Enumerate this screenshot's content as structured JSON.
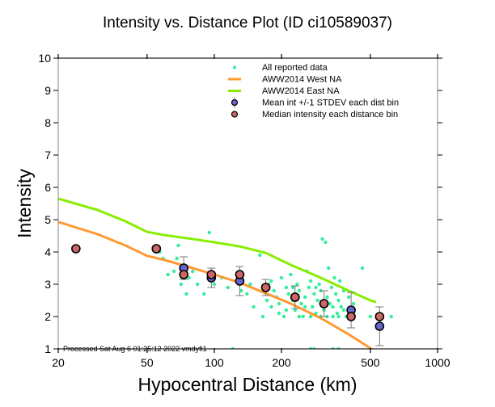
{
  "chart_data": {
    "type": "scatter",
    "title": "Intensity vs. Distance Plot (ID ci10589037)",
    "xlabel": "Hypocentral Distance (km)",
    "ylabel": "Intensity",
    "xscale": "log",
    "xlim": [
      20,
      1000
    ],
    "ylim": [
      1,
      10
    ],
    "xticks": [
      20,
      50,
      100,
      200,
      500,
      1000
    ],
    "xtick_labels": [
      "20",
      "50",
      "100",
      "200",
      "500",
      "1000"
    ],
    "yticks": [
      1,
      2,
      3,
      4,
      5,
      6,
      7,
      8,
      9,
      10
    ],
    "ytick_labels": [
      "1",
      "2",
      "3",
      "4",
      "5",
      "6",
      "7",
      "8",
      "9",
      "10"
    ],
    "grid": false,
    "legend_position": "top-right",
    "legend": [
      {
        "label": "All reported data",
        "kind": "dot",
        "color": "#33ee99"
      },
      {
        "label": "AWW2014 West NA",
        "kind": "line",
        "color": "#ff9933"
      },
      {
        "label": "AWW2014 East NA",
        "kind": "line",
        "color": "#88ee00"
      },
      {
        "label": "Mean int +/-1 STDEV each dist bin",
        "kind": "errcircle",
        "color": "#6666cc"
      },
      {
        "label": "Median intensity each distance bin",
        "kind": "circle",
        "color": "#cc6666"
      }
    ],
    "footer_note": "Processed Sat Aug  6 01:25:12 2022 vmdyfi1",
    "series": [
      {
        "name": "AWW2014 West NA",
        "kind": "line",
        "color": "#ff9933",
        "x": [
          20,
          30,
          40,
          50,
          60,
          80,
          100,
          130,
          170,
          220,
          300,
          400,
          500,
          530
        ],
        "y": [
          4.93,
          4.55,
          4.2,
          3.88,
          3.75,
          3.5,
          3.3,
          3.05,
          2.72,
          2.4,
          1.95,
          1.45,
          1.02,
          0.9
        ]
      },
      {
        "name": "AWW2014 East NA",
        "kind": "line",
        "color": "#88ee00",
        "x": [
          20,
          30,
          40,
          50,
          60,
          80,
          100,
          130,
          170,
          220,
          300,
          400,
          500,
          530
        ],
        "y": [
          5.65,
          5.3,
          4.95,
          4.62,
          4.52,
          4.4,
          4.3,
          4.17,
          3.97,
          3.6,
          3.2,
          2.8,
          2.5,
          2.45
        ]
      },
      {
        "name": "Mean int +/-1 STDEV each dist bin",
        "kind": "errorbar",
        "color": "#6666cc",
        "x": [
          55,
          73,
          97,
          130,
          170,
          230,
          310,
          410,
          550
        ],
        "y": [
          4.1,
          3.5,
          3.2,
          3.1,
          2.9,
          2.6,
          2.4,
          2.2,
          1.7
        ],
        "err": [
          0,
          0.35,
          0.3,
          0.45,
          0.25,
          0.35,
          0.4,
          0.55,
          0.6
        ]
      },
      {
        "name": "Median intensity each distance bin",
        "kind": "points",
        "color": "#cc6666",
        "x": [
          24,
          55,
          73,
          97,
          130,
          170,
          230,
          310,
          410,
          550
        ],
        "y": [
          4.1,
          4.1,
          3.3,
          3.3,
          3.3,
          2.9,
          2.6,
          2.4,
          2.0,
          2.0
        ]
      },
      {
        "name": "All reported data",
        "kind": "dots",
        "color": "#33ee99",
        "points": [
          [
            57,
            4.0
          ],
          [
            59,
            3.8
          ],
          [
            62,
            3.3
          ],
          [
            66,
            3.4
          ],
          [
            68,
            3.8
          ],
          [
            69,
            4.2
          ],
          [
            71,
            3.0
          ],
          [
            75,
            2.7
          ],
          [
            77,
            3.2
          ],
          [
            80,
            3.4
          ],
          [
            84,
            3.0
          ],
          [
            90,
            2.7
          ],
          [
            95,
            4.6
          ],
          [
            100,
            3.0
          ],
          [
            108,
            3.2
          ],
          [
            115,
            2.9
          ],
          [
            121,
            1.0
          ],
          [
            132,
            2.8
          ],
          [
            140,
            2.7
          ],
          [
            145,
            3.0
          ],
          [
            150,
            2.3
          ],
          [
            160,
            3.9
          ],
          [
            165,
            2.0
          ],
          [
            172,
            2.5
          ],
          [
            175,
            3.0
          ],
          [
            180,
            3.1
          ],
          [
            185,
            2.8
          ],
          [
            190,
            2.6
          ],
          [
            195,
            2.4
          ],
          [
            200,
            3.2
          ],
          [
            205,
            2.0
          ],
          [
            210,
            2.9
          ],
          [
            215,
            2.7
          ],
          [
            220,
            3.3
          ],
          [
            225,
            2.5
          ],
          [
            230,
            2.2
          ],
          [
            235,
            3.0
          ],
          [
            240,
            2.8
          ],
          [
            245,
            2.4
          ],
          [
            250,
            2.0
          ],
          [
            255,
            2.6
          ],
          [
            260,
            3.4
          ],
          [
            265,
            2.9
          ],
          [
            270,
            3.1
          ],
          [
            275,
            2.3
          ],
          [
            280,
            2.7
          ],
          [
            285,
            2.1
          ],
          [
            290,
            2.5
          ],
          [
            295,
            3.0
          ],
          [
            300,
            2.8
          ],
          [
            305,
            4.4
          ],
          [
            310,
            2.2
          ],
          [
            315,
            4.3
          ],
          [
            320,
            2.6
          ],
          [
            325,
            3.5
          ],
          [
            330,
            2.4
          ],
          [
            335,
            2.9
          ],
          [
            340,
            2.0
          ],
          [
            345,
            3.2
          ],
          [
            350,
            2.7
          ],
          [
            355,
            2.1
          ],
          [
            360,
            2.5
          ],
          [
            365,
            3.1
          ],
          [
            370,
            2.3
          ],
          [
            380,
            2.8
          ],
          [
            390,
            2.0
          ],
          [
            400,
            2.6
          ],
          [
            420,
            2.4
          ],
          [
            460,
            3.5
          ],
          [
            500,
            2.0
          ],
          [
            560,
            2.0
          ],
          [
            620,
            2.0
          ],
          [
            180,
            2.3
          ],
          [
            195,
            2.1
          ],
          [
            210,
            2.2
          ],
          [
            225,
            2.9
          ],
          [
            240,
            2.0
          ],
          [
            255,
            2.3
          ],
          [
            270,
            2.0
          ],
          [
            285,
            2.9
          ],
          [
            300,
            2.0
          ],
          [
            320,
            2.0
          ],
          [
            340,
            2.3
          ],
          [
            360,
            2.0
          ],
          [
            380,
            2.2
          ],
          [
            270,
            1.0
          ],
          [
            280,
            1.0
          ],
          [
            340,
            1.0
          ],
          [
            360,
            1.0
          ]
        ]
      }
    ]
  }
}
